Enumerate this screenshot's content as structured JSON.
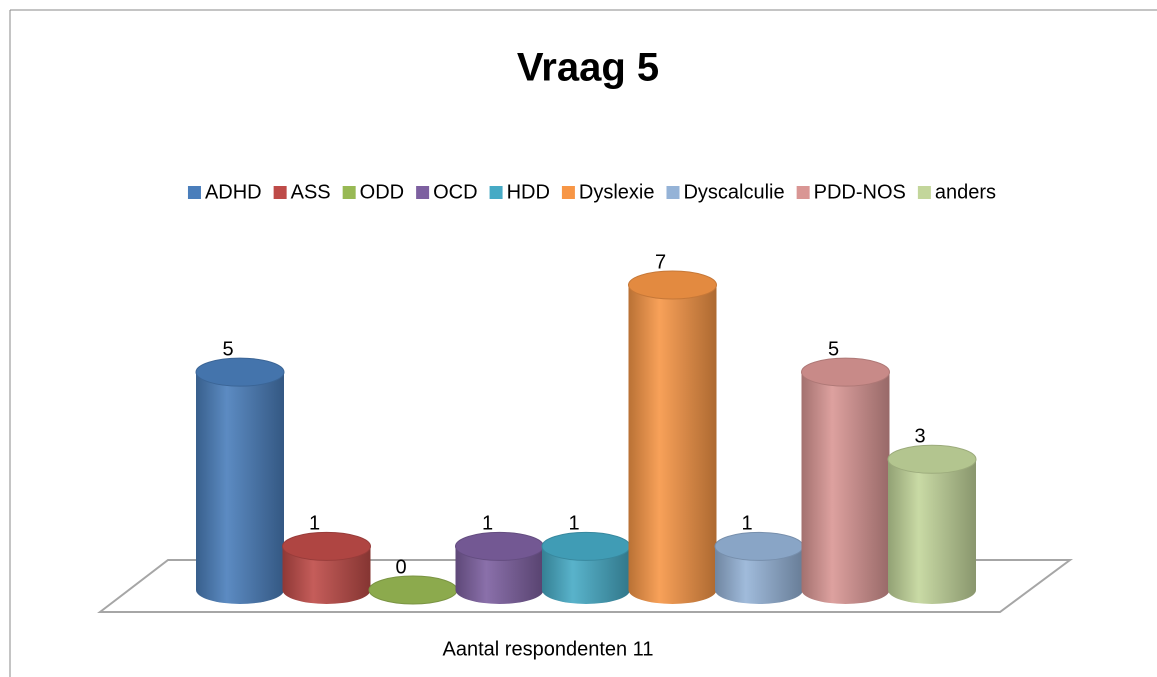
{
  "chart_data": {
    "type": "bar3d",
    "title": "Vraag 5",
    "categories": [
      "Aantal respondenten 11"
    ],
    "ylim": [
      0,
      7
    ],
    "series": [
      {
        "name": "ADHD",
        "color": "#4a7ebb",
        "values": [
          5
        ]
      },
      {
        "name": "ASS",
        "color": "#be4b48",
        "values": [
          1
        ]
      },
      {
        "name": "ODD",
        "color": "#98b954",
        "values": [
          0
        ]
      },
      {
        "name": "OCD",
        "color": "#7d60a0",
        "values": [
          1
        ]
      },
      {
        "name": "HDD",
        "color": "#46aac5",
        "values": [
          1
        ]
      },
      {
        "name": "Dyslexie",
        "color": "#f79646",
        "values": [
          7
        ]
      },
      {
        "name": "Dyscalculie",
        "color": "#95b3d7",
        "values": [
          1
        ]
      },
      {
        "name": "PDD-NOS",
        "color": "#d99694",
        "values": [
          5
        ]
      },
      {
        "name": "anders",
        "color": "#c3d69b",
        "values": [
          3
        ]
      }
    ],
    "legend": "top"
  }
}
